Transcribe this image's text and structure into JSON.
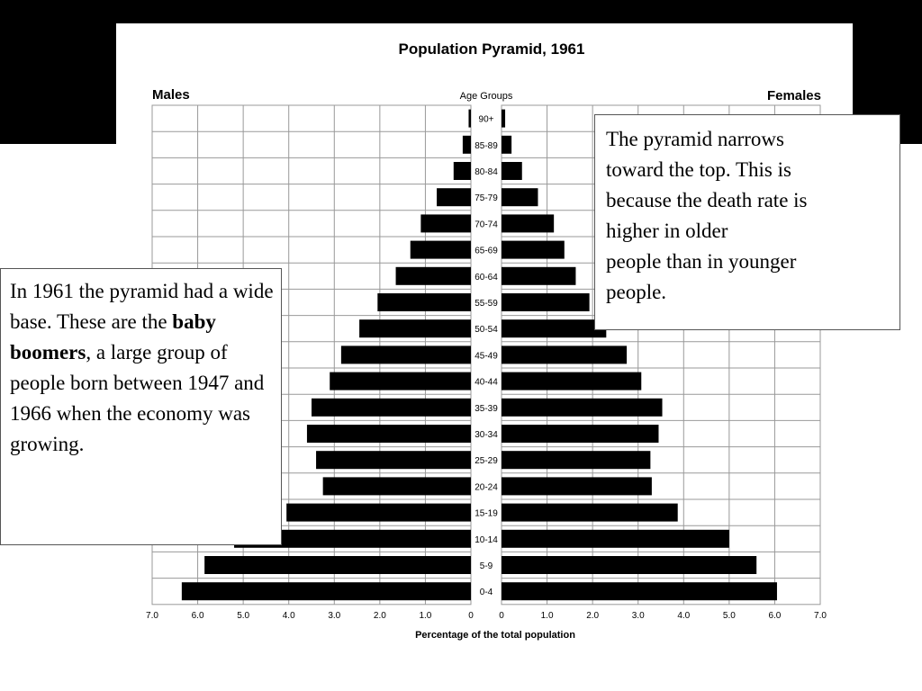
{
  "slide": {
    "note_right_lines": [
      "The pyramid narrows",
      "toward the top. This is",
      "because the death rate is",
      "higher in older",
      "people than in younger",
      "people."
    ],
    "note_left": {
      "text_before": "In 1961 the pyramid had a wide base. These are the ",
      "bold": "baby boomers",
      "text_after": ", a large group of people born between 1947 and 1966 when the economy was growing."
    }
  },
  "chart_data": {
    "type": "bar",
    "orientation": "horizontal",
    "subtype": "population pyramid",
    "title": "Population Pyramid, 1961",
    "left_label": "Males",
    "right_label": "Females",
    "center_label": "Age Groups",
    "xlabel": "Percentage of the total population",
    "xlim": [
      0,
      7
    ],
    "x_ticks_left": [
      "7.0",
      "6.0",
      "5.0",
      "4.0",
      "3.0",
      "2.0",
      "1.0",
      "0"
    ],
    "x_ticks_right": [
      "0",
      "1.0",
      "2.0",
      "3.0",
      "4.0",
      "5.0",
      "6.0",
      "7.0"
    ],
    "grid": true,
    "bar_color": "#000000",
    "categories": [
      "90+",
      "85-89",
      "80-84",
      "75-79",
      "70-74",
      "65-69",
      "60-64",
      "55-59",
      "50-54",
      "45-49",
      "40-44",
      "35-39",
      "30-34",
      "25-29",
      "20-24",
      "15-19",
      "10-14",
      "5-9",
      "0-4"
    ],
    "series": [
      {
        "name": "Males",
        "values": [
          0.05,
          0.18,
          0.38,
          0.75,
          1.1,
          1.33,
          1.65,
          2.05,
          2.45,
          2.85,
          3.1,
          3.5,
          3.6,
          3.4,
          3.25,
          4.05,
          5.2,
          5.85,
          6.35
        ]
      },
      {
        "name": "Females",
        "values": [
          0.08,
          0.22,
          0.45,
          0.8,
          1.15,
          1.38,
          1.63,
          1.93,
          2.3,
          2.75,
          3.07,
          3.53,
          3.45,
          3.27,
          3.3,
          3.87,
          5.0,
          5.6,
          6.05
        ]
      }
    ]
  }
}
